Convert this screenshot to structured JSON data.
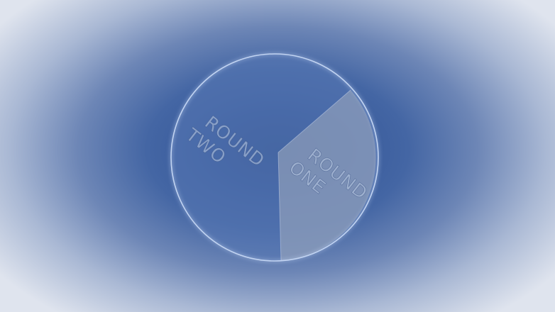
{
  "wheel": {
    "segments": [
      {
        "id": "round-one",
        "line1": "ROUND",
        "line2": "ONE",
        "fill": "#9aa6bd"
      },
      {
        "id": "round-two",
        "line1": "ROUND",
        "line2": "TWO",
        "fill": "#5878b5"
      }
    ],
    "rim_color": "#c2d4f2",
    "glow_color": "#9fc0ff"
  }
}
